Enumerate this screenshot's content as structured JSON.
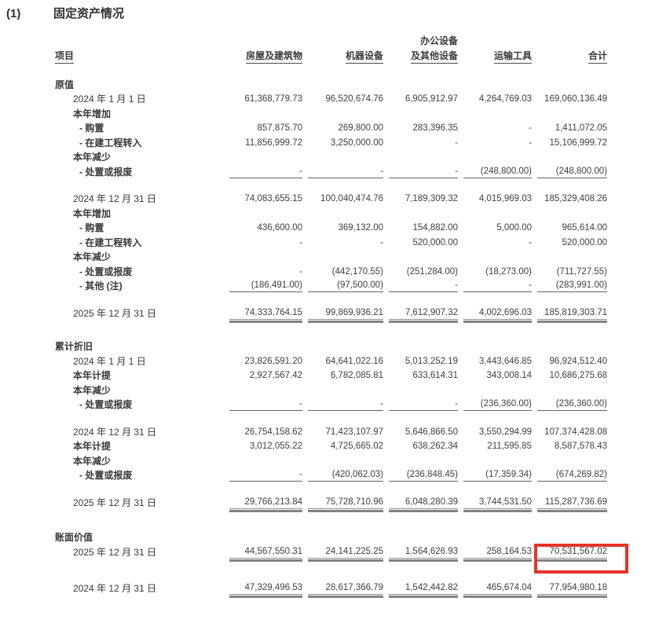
{
  "page": {
    "section_number": "(1)",
    "title": "固定资产情况"
  },
  "colors": {
    "highlight_box": "#e5332a"
  },
  "table": {
    "columns": [
      {
        "label": "项目"
      },
      {
        "label": "房屋及建筑物"
      },
      {
        "label": "机器设备"
      },
      {
        "label_top": "办公设备",
        "label": "及其他设备"
      },
      {
        "label": "运输工具"
      },
      {
        "label": "合计"
      }
    ],
    "rows": [
      {
        "label": "原值",
        "indent": 0,
        "bold": true
      },
      {
        "label": "2024 年 1 月 1 日",
        "indent": 1,
        "values": [
          "61,368,779.73",
          "96,520,674.76",
          "6,905,912.97",
          "4,264,769.03",
          "169,060,136.49"
        ]
      },
      {
        "label": "本年增加",
        "indent": 1,
        "bold": true
      },
      {
        "label": "- 购置",
        "indent": 2,
        "bold": true,
        "values": [
          "857,875.70",
          "269,800.00",
          "283,396.35",
          "-",
          "1,411,072.05"
        ]
      },
      {
        "label": "- 在建工程转入",
        "indent": 2,
        "bold": true,
        "values": [
          "11,856,999.72",
          "3,250,000.00",
          "-",
          "-",
          "15,106,999.72"
        ]
      },
      {
        "label": "本年减少",
        "indent": 1,
        "bold": true
      },
      {
        "label": "- 处置或报废",
        "indent": 2,
        "bold": true,
        "underline": "single",
        "values": [
          "-",
          "-",
          "-",
          "(248,800.00)",
          "(248,800.00)"
        ]
      },
      {
        "spacer": 16
      },
      {
        "label": "2024 年 12 月 31 日",
        "indent": 1,
        "values": [
          "74,083,655.15",
          "100,040,474.76",
          "7,189,309.32",
          "4,015,969.03",
          "185,329,408.26"
        ]
      },
      {
        "label": "本年增加",
        "indent": 1,
        "bold": true
      },
      {
        "label": "- 购置",
        "indent": 2,
        "bold": true,
        "values": [
          "436,600.00",
          "369,132.00",
          "154,882.00",
          "5,000.00",
          "965,614.00"
        ]
      },
      {
        "label": "- 在建工程转入",
        "indent": 2,
        "bold": true,
        "values": [
          "-",
          "-",
          "520,000.00",
          "-",
          "520,000.00"
        ]
      },
      {
        "label": "本年减少",
        "indent": 1,
        "bold": true
      },
      {
        "label": "- 处置或报废",
        "indent": 2,
        "bold": true,
        "values": [
          "-",
          "(442,170.55)",
          "(251,284.00)",
          "(18,273.00)",
          "(711,727.55)"
        ]
      },
      {
        "label": "- 其他 (注)",
        "indent": 2,
        "bold": true,
        "underline": "single",
        "values": [
          "(186,491.00)",
          "(97,500.00)",
          "-",
          "-",
          "(283,991.00)"
        ]
      },
      {
        "spacer": 16
      },
      {
        "label": "2025 年 12 月 31 日",
        "indent": 1,
        "underline": "double",
        "values": [
          "74,333,764.15",
          "99,869,936.21",
          "7,612,907.32",
          "4,002,696.03",
          "185,819,303.71"
        ]
      },
      {
        "spacer": 24
      },
      {
        "label": "累计折旧",
        "indent": 0,
        "bold": true
      },
      {
        "label": "2024 年 1 月 1 日",
        "indent": 1,
        "values": [
          "23,826,591.20",
          "64,641,022.16",
          "5,013,252.19",
          "3,443,646.85",
          "96,924,512.40"
        ]
      },
      {
        "label": "本年计提",
        "indent": 1,
        "bold": true,
        "values": [
          "2,927,567.42",
          "6,782,085.81",
          "633,614.31",
          "343,008.14",
          "10,686,275.68"
        ]
      },
      {
        "label": "本年减少",
        "indent": 1,
        "bold": true
      },
      {
        "label": "- 处置或报废",
        "indent": 2,
        "bold": true,
        "underline": "single",
        "values": [
          "-",
          "-",
          "-",
          "(236,360.00)",
          "(236,360.00)"
        ]
      },
      {
        "spacer": 16
      },
      {
        "label": "2024 年 12 月 31 日",
        "indent": 1,
        "values": [
          "26,754,158.62",
          "71,423,107.97",
          "5,646,866.50",
          "3,550,294.99",
          "107,374,428.08"
        ]
      },
      {
        "label": "本年计提",
        "indent": 1,
        "bold": true,
        "values": [
          "3,012,055.22",
          "4,725,665.02",
          "638,262.34",
          "211,595.85",
          "8,587,578.43"
        ]
      },
      {
        "label": "本年减少",
        "indent": 1,
        "bold": true
      },
      {
        "label": "- 处置或报废",
        "indent": 2,
        "bold": true,
        "underline": "single",
        "values": [
          "-",
          "(420,062.03)",
          "(236,848.45)",
          "(17,359.34)",
          "(674,269.82)"
        ]
      },
      {
        "spacer": 16
      },
      {
        "label": "2025 年 12 月 31 日",
        "indent": 1,
        "underline": "double",
        "values": [
          "29,766,213.84",
          "75,728,710.96",
          "6,048,280.39",
          "3,744,531.50",
          "115,287,736.69"
        ]
      },
      {
        "spacer": 26
      },
      {
        "label": "账面价值",
        "indent": 0,
        "bold": true
      },
      {
        "label": "2025 年 12 月 31 日",
        "indent": 1,
        "underline": "double",
        "highlight_col": 4,
        "values": [
          "44,567,550.31",
          "24,141,225.25",
          "1,564,626.93",
          "258,164.53",
          "70,531,567.02"
        ]
      },
      {
        "spacer": 28
      },
      {
        "label": "2024 年 12 月 31 日",
        "indent": 1,
        "underline": "double",
        "values": [
          "47,329,496.53",
          "28,617,366.79",
          "1,542,442.82",
          "465,674.04",
          "77,954,980.18"
        ]
      }
    ]
  }
}
